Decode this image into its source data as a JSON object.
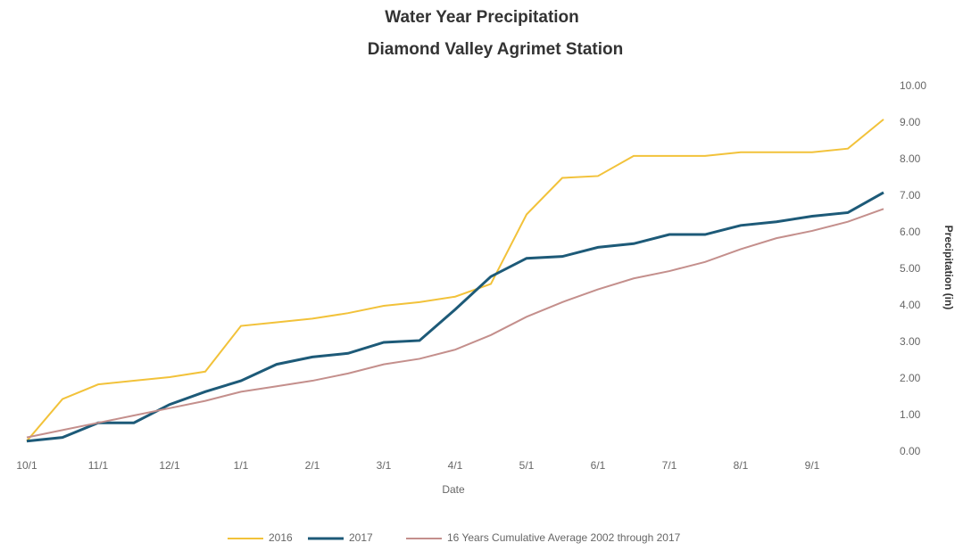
{
  "chart_data": {
    "type": "line",
    "title": "Water Year Precipitation",
    "subtitle": "Diamond Valley Agrimet Station",
    "x_label": "Date",
    "y_label": "Precipitation (in)",
    "y_axis_side": "right",
    "categories": [
      "10/1",
      null,
      "11/1",
      null,
      "12/1",
      null,
      "1/1",
      null,
      "2/1",
      null,
      "3/1",
      null,
      "4/1",
      null,
      "5/1",
      null,
      "6/1",
      null,
      "7/1",
      null,
      "8/1",
      null,
      "9/1",
      null,
      null
    ],
    "series": [
      {
        "name": "2016",
        "color": "#f2c23a",
        "values": [
          0.3,
          1.45,
          1.85,
          1.95,
          2.05,
          2.2,
          3.45,
          3.55,
          3.65,
          3.8,
          4.0,
          4.1,
          4.25,
          4.6,
          6.5,
          7.5,
          7.55,
          8.1,
          8.1,
          8.1,
          8.2,
          8.2,
          8.2,
          8.3,
          9.1
        ]
      },
      {
        "name": "2017",
        "color": "#1d5a78",
        "values": [
          0.3,
          0.4,
          0.8,
          0.8,
          1.3,
          1.65,
          1.95,
          2.4,
          2.6,
          2.7,
          3.0,
          3.05,
          3.9,
          4.8,
          5.3,
          5.35,
          5.6,
          5.7,
          5.95,
          5.95,
          6.2,
          6.3,
          6.45,
          6.55,
          7.1
        ]
      },
      {
        "name": "16 Years Cumulative Average 2002 through 2017",
        "color": "#c48f8c",
        "values": [
          0.4,
          0.6,
          0.8,
          1.0,
          1.2,
          1.4,
          1.65,
          1.8,
          1.95,
          2.15,
          2.4,
          2.55,
          2.8,
          3.2,
          3.7,
          4.1,
          4.45,
          4.75,
          4.95,
          5.2,
          5.55,
          5.85,
          6.05,
          6.3,
          6.65
        ]
      }
    ],
    "ylim": [
      0,
      10
    ],
    "yticks": [
      {
        "value": 0,
        "label": "0.00"
      },
      {
        "value": 1,
        "label": "1.00"
      },
      {
        "value": 2,
        "label": "2.00"
      },
      {
        "value": 3,
        "label": "3.00"
      },
      {
        "value": 4,
        "label": "4.00"
      },
      {
        "value": 5,
        "label": "5.00"
      },
      {
        "value": 6,
        "label": "6.00"
      },
      {
        "value": 7,
        "label": "7.00"
      },
      {
        "value": 8,
        "label": "8.00"
      },
      {
        "value": 9,
        "label": "9.00"
      },
      {
        "value": 10,
        "label": "10.00"
      }
    ],
    "grid": false,
    "legend": "bottom"
  }
}
